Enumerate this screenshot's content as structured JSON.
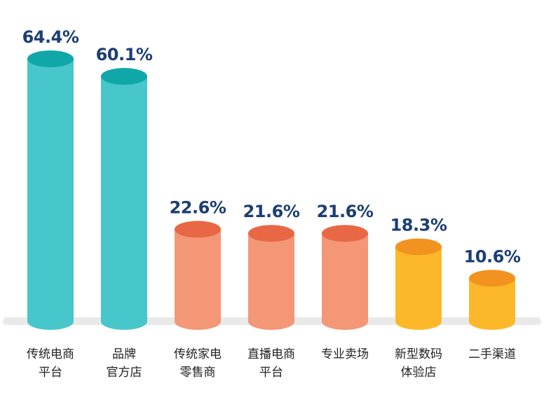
{
  "chart_data": {
    "type": "bar",
    "categories": [
      [
        "传统电商",
        "平台"
      ],
      [
        "品牌",
        "官方店"
      ],
      [
        "传统家电",
        "零售商"
      ],
      [
        "直播电商",
        "平台"
      ],
      [
        "专业卖场"
      ],
      [
        "新型数码",
        "体验店"
      ],
      [
        "二手渠道"
      ]
    ],
    "values": [
      64.4,
      60.1,
      22.6,
      21.6,
      21.6,
      18.3,
      10.6
    ],
    "value_labels": [
      "64.4%",
      "60.1%",
      "22.6%",
      "21.6%",
      "21.6%",
      "18.3%",
      "10.6%"
    ],
    "unit": "%",
    "title": "",
    "xlabel": "",
    "ylabel": "",
    "ylim": [
      0,
      64.4
    ],
    "grid": false,
    "legend": "none",
    "bar_style": "cylinder",
    "colors": {
      "teal_body": "#47C6CB",
      "teal_top": "#10A7A9",
      "salmon_body": "#F39776",
      "salmon_top": "#E86745",
      "amber_body": "#FDB82A",
      "amber_top": "#F1931E",
      "value_text": "#1C3E73",
      "category_text": "#222222",
      "baseline": "#E9E9E9"
    },
    "bar_colors": [
      "teal",
      "teal",
      "salmon",
      "salmon",
      "salmon",
      "amber",
      "amber"
    ]
  }
}
